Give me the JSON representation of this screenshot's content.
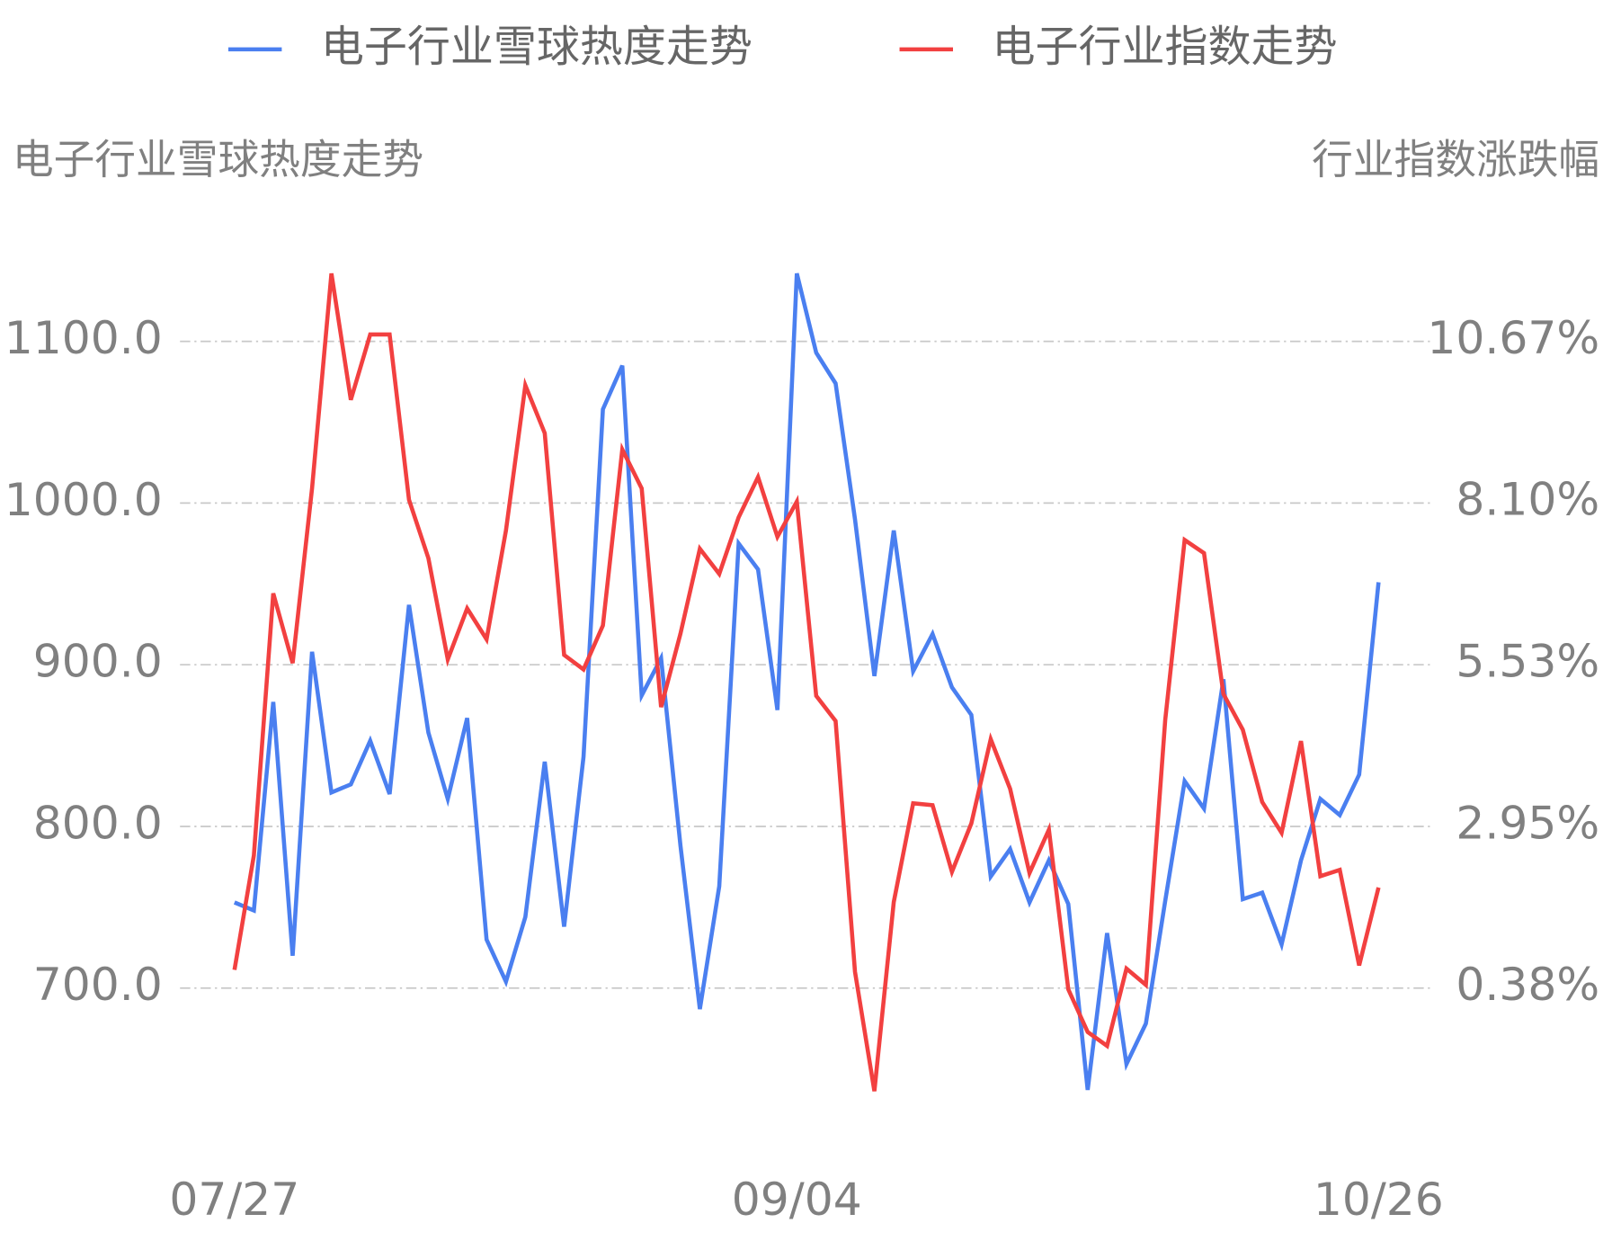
{
  "chart_data": {
    "type": "line",
    "y_label": "电子行业雪球热度走势",
    "y2_label": "行业指数涨跌幅",
    "categories": [
      "07/27",
      null,
      null,
      null,
      null,
      null,
      null,
      null,
      null,
      null,
      null,
      null,
      null,
      null,
      null,
      null,
      null,
      null,
      null,
      null,
      null,
      null,
      null,
      null,
      null,
      null,
      null,
      null,
      null,
      "09/04",
      null,
      null,
      null,
      null,
      null,
      null,
      null,
      null,
      null,
      null,
      null,
      null,
      null,
      null,
      null,
      null,
      null,
      null,
      null,
      null,
      null,
      null,
      null,
      null,
      null,
      null,
      null,
      null,
      null,
      "10/26"
    ],
    "ylim": [
      620,
      1150
    ],
    "yticks": [
      {
        "value": 700,
        "label": "700.0"
      },
      {
        "value": 800,
        "label": "800.0"
      },
      {
        "value": 900,
        "label": "900.0"
      },
      {
        "value": 1000,
        "label": "1000.0"
      },
      {
        "value": 1100,
        "label": "1100.0"
      }
    ],
    "y2lim": [
      -1.678,
      11.956
    ],
    "y2ticks": [
      {
        "value": 0.38,
        "label": "0.38%"
      },
      {
        "value": 2.95,
        "label": "2.95%"
      },
      {
        "value": 5.53,
        "label": "5.53%"
      },
      {
        "value": 8.1,
        "label": "8.10%"
      },
      {
        "value": 10.67,
        "label": "10.67%"
      }
    ],
    "grid": true,
    "series": [
      {
        "name": "电子行业雪球热度走势",
        "color": "#4a7ff0",
        "values": [
          753,
          748,
          877,
          720,
          908,
          821,
          826,
          853,
          820,
          937,
          858,
          817,
          867,
          730,
          704,
          744,
          840,
          738,
          843,
          1058,
          1085,
          881,
          904,
          788,
          687,
          763,
          975,
          959,
          872,
          1142,
          1093,
          1074,
          990,
          893,
          983,
          896,
          919,
          886,
          869,
          769,
          786,
          753,
          779,
          752,
          637,
          734,
          653,
          678,
          754,
          828,
          811,
          891,
          755,
          759,
          727,
          779,
          817,
          807,
          832,
          951
        ]
      },
      {
        "name": "电子行业指数走势",
        "color": "#f24040",
        "axis": "y2",
        "values": [
          0.67,
          2.49,
          6.66,
          5.55,
          8.33,
          11.75,
          9.74,
          10.78,
          10.78,
          8.15,
          7.22,
          5.61,
          6.42,
          5.93,
          7.66,
          9.97,
          9.21,
          5.68,
          5.45,
          6.15,
          8.95,
          8.33,
          4.85,
          6.02,
          7.37,
          6.97,
          7.87,
          8.51,
          7.56,
          8.12,
          5.03,
          4.63,
          0.64,
          -1.26,
          1.75,
          3.32,
          3.29,
          2.23,
          3.0,
          4.34,
          3.55,
          2.21,
          2.9,
          0.36,
          -0.32,
          -0.54,
          0.69,
          0.43,
          4.65,
          7.51,
          7.3,
          5.06,
          4.49,
          3.34,
          2.85,
          4.31,
          2.16,
          2.26,
          0.74,
          1.98
        ]
      }
    ]
  }
}
